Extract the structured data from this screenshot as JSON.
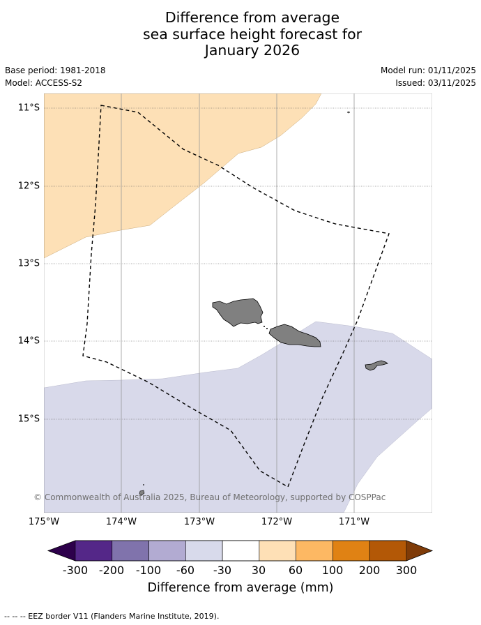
{
  "title": {
    "line1": "Difference from average",
    "line2": "sea surface height forecast for",
    "line3": "January 2026"
  },
  "meta": {
    "base_period": "Base period: 1981-2018",
    "model": "Model: ACCESS-S2",
    "model_run": "Model run: 01/11/2025",
    "issued": "Issued: 03/11/2025"
  },
  "map": {
    "lat_labels": [
      "11°S",
      "12°S",
      "13°S",
      "14°S",
      "15°S"
    ],
    "lon_labels": [
      "175°W",
      "174°W",
      "173°W",
      "172°W",
      "171°W"
    ],
    "copyright": "© Commonwealth of Australia 2025, Bureau of Meteorology, supported by COSPPac",
    "colors": {
      "positive_region": "#fde0b6",
      "negative_region": "#d8d9ea",
      "land": "#808080",
      "eez": "#000000"
    },
    "regions": [
      {
        "name": "30 to 60 mm anomaly area",
        "range": "30 to 60"
      },
      {
        "name": "-30 to -60 mm anomaly area",
        "range": "-60 to -30"
      }
    ]
  },
  "colorbar": {
    "label": "Difference from average (mm)",
    "ticks": [
      "-300",
      "-200",
      "-100",
      "-60",
      "-30",
      "30",
      "60",
      "100",
      "200",
      "300"
    ],
    "under_color": "#2d004b",
    "over_color": "#7f3b08",
    "colors": [
      "#542788",
      "#8073ac",
      "#b2abd2",
      "#d8daeb",
      "#ffffff",
      "#fee0b6",
      "#fdb863",
      "#e08214",
      "#b35806"
    ]
  },
  "footnote": "--  --  -- EEZ border V11 (Flanders Marine Institute, 2019)."
}
